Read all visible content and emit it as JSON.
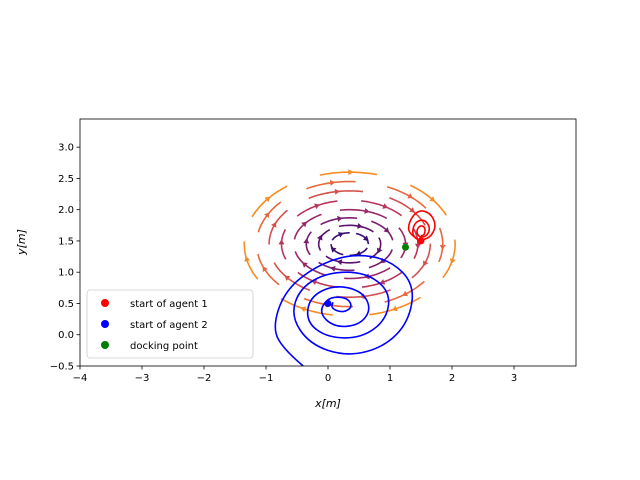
{
  "chart_data": {
    "type": "line",
    "xlabel": "x[m]",
    "ylabel": "y[m]",
    "xlim": [
      -4,
      4
    ],
    "ylim": [
      -0.5,
      3.45
    ],
    "x_ticks": [
      "−4",
      "−3",
      "−2",
      "−1",
      "0",
      "1",
      "2",
      "3"
    ],
    "y_ticks": [
      "−0.5",
      "0.0",
      "0.5",
      "1.0",
      "1.5",
      "2.0",
      "2.5",
      "3.0"
    ],
    "x_tick_values": [
      -4,
      -3,
      -2,
      -1,
      0,
      1,
      2,
      3
    ],
    "y_tick_values": [
      -0.5,
      0.0,
      0.5,
      1.0,
      1.5,
      2.0,
      2.5,
      3.0
    ],
    "grid": false,
    "legend_placement": "lower-left",
    "field_center": [
      0.35,
      1.45
    ],
    "streamline_rings": [
      {
        "rx": 0.3,
        "ry": 0.18,
        "color": "#3b0f70"
      },
      {
        "rx": 0.5,
        "ry": 0.3,
        "color": "#5b126e"
      },
      {
        "rx": 0.7,
        "ry": 0.42,
        "color": "#7a1d6d"
      },
      {
        "rx": 0.9,
        "ry": 0.55,
        "color": "#9a2865"
      },
      {
        "rx": 1.1,
        "ry": 0.7,
        "color": "#b9375c"
      },
      {
        "rx": 1.3,
        "ry": 0.85,
        "color": "#d4504e"
      },
      {
        "rx": 1.5,
        "ry": 1.0,
        "color": "#e8683e"
      },
      {
        "rx": 1.7,
        "ry": 1.15,
        "color": "#f88a22"
      }
    ],
    "series": [
      {
        "legend_name": "start of agent 1",
        "color": "#ff0000",
        "start": [
          1.5,
          1.5
        ],
        "path": [
          [
            1.5,
            1.5
          ],
          [
            1.3,
            1.6
          ],
          [
            1.3,
            1.8
          ],
          [
            1.45,
            2.0
          ],
          [
            1.65,
            1.95
          ],
          [
            1.75,
            1.75
          ],
          [
            1.65,
            1.55
          ],
          [
            1.45,
            1.5
          ],
          [
            1.35,
            1.62
          ],
          [
            1.4,
            1.8
          ],
          [
            1.55,
            1.85
          ],
          [
            1.65,
            1.72
          ],
          [
            1.6,
            1.58
          ],
          [
            1.48,
            1.55
          ],
          [
            1.42,
            1.65
          ],
          [
            1.48,
            1.75
          ],
          [
            1.57,
            1.72
          ],
          [
            1.56,
            1.6
          ],
          [
            1.5,
            1.58
          ]
        ]
      },
      {
        "legend_name": "start of agent 2",
        "color": "#0000ff",
        "start": [
          0.0,
          0.5
        ],
        "path": [
          [
            -0.4,
            -0.5
          ],
          [
            -0.7,
            -0.25
          ],
          [
            -0.9,
            0.1
          ],
          [
            -0.7,
            0.7
          ],
          [
            -0.2,
            1.1
          ],
          [
            0.4,
            1.3
          ],
          [
            1.0,
            1.2
          ],
          [
            1.4,
            0.8
          ],
          [
            1.3,
            0.2
          ],
          [
            0.9,
            -0.2
          ],
          [
            0.3,
            -0.35
          ],
          [
            -0.3,
            -0.15
          ],
          [
            -0.6,
            0.3
          ],
          [
            -0.45,
            0.75
          ],
          [
            0.0,
            1.0
          ],
          [
            0.6,
            1.0
          ],
          [
            1.0,
            0.7
          ],
          [
            0.95,
            0.25
          ],
          [
            0.55,
            -0.05
          ],
          [
            0.0,
            -0.05
          ],
          [
            -0.35,
            0.2
          ],
          [
            -0.3,
            0.6
          ],
          [
            0.1,
            0.8
          ],
          [
            0.55,
            0.7
          ],
          [
            0.7,
            0.4
          ],
          [
            0.5,
            0.15
          ],
          [
            0.1,
            0.12
          ],
          [
            -0.15,
            0.35
          ],
          [
            0.0,
            0.6
          ],
          [
            0.3,
            0.6
          ],
          [
            0.4,
            0.45
          ],
          [
            0.25,
            0.35
          ],
          [
            0.05,
            0.42
          ],
          [
            0.08,
            0.52
          ]
        ]
      },
      {
        "legend_name": "docking point",
        "color": "#008000",
        "start": [
          1.25,
          1.4
        ],
        "path": []
      }
    ]
  }
}
